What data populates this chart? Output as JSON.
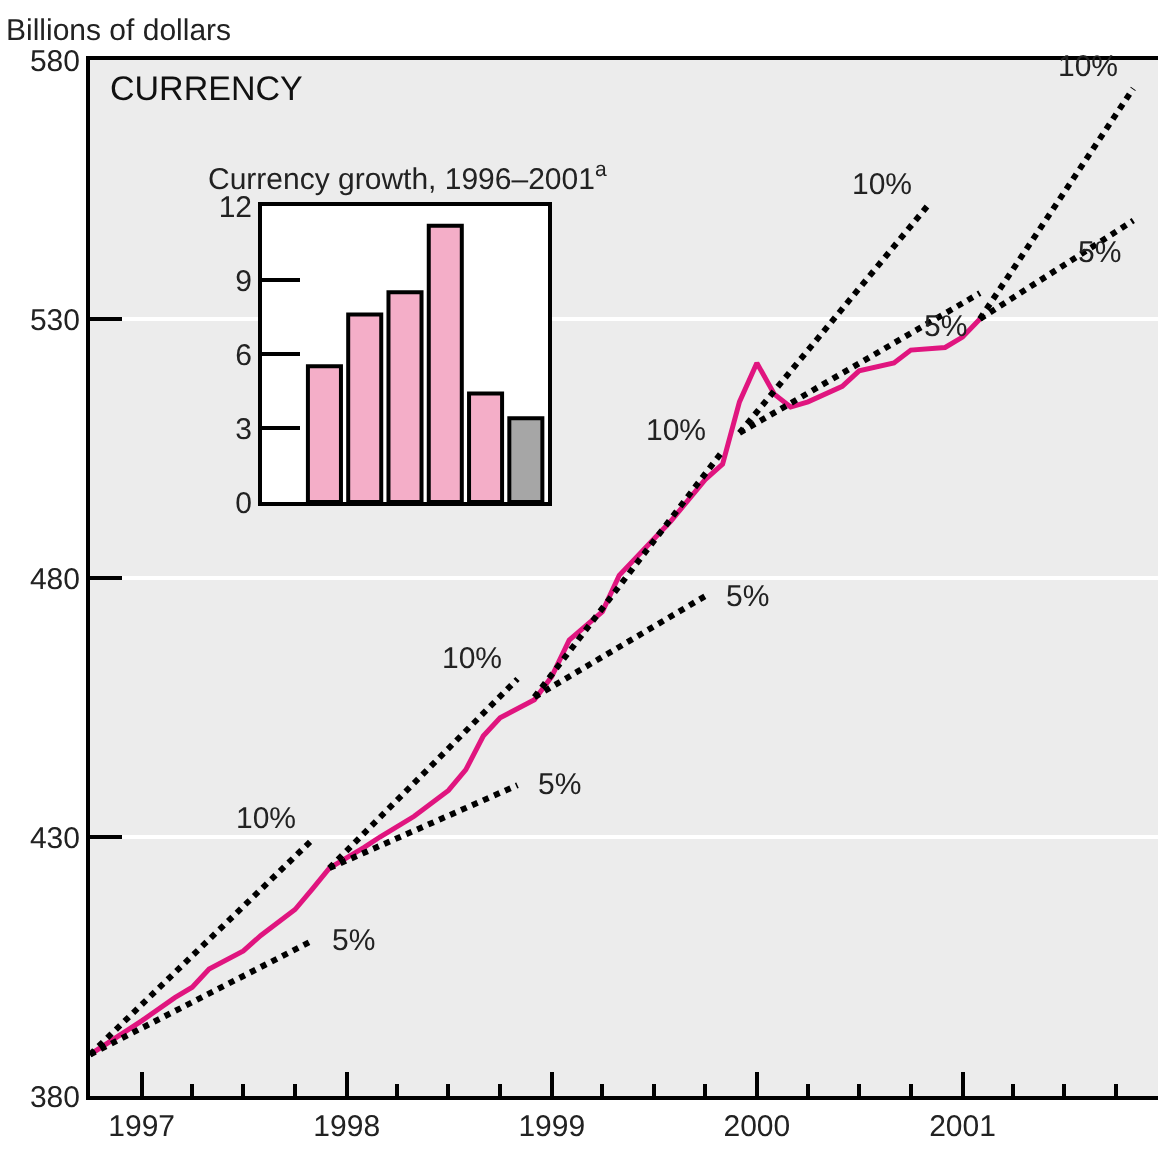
{
  "chart_data": [
    {
      "type": "line",
      "title": "CURRENCY",
      "ylabel": "Billions of dollars",
      "xlim": [
        "1996-10-01",
        "2001-12-15"
      ],
      "xticks": [
        {
          "value": "1997",
          "label": "1997"
        },
        {
          "value": "1998",
          "label": "1998"
        },
        {
          "value": "1999",
          "label": "1999"
        },
        {
          "value": "2000",
          "label": "2000"
        },
        {
          "value": "2001",
          "label": "2001"
        }
      ],
      "ylim": [
        380,
        580
      ],
      "yticks": [
        380,
        430,
        480,
        530,
        580
      ],
      "grid": "y",
      "legend": false,
      "marker": "none",
      "series": [
        {
          "color": "#e0157f",
          "line_style": "solid",
          "x": [
            "1996-10",
            "1997-01",
            "1997-03",
            "1997-04",
            "1997-05",
            "1997-07",
            "1997-08",
            "1997-10",
            "1997-11",
            "1997-12",
            "1998-02",
            "1998-03",
            "1998-05",
            "1998-07",
            "1998-08",
            "1998-09",
            "1998-10",
            "1998-12",
            "1999-01",
            "1999-02",
            "1999-04",
            "1999-05",
            "1999-08",
            "1999-10",
            "1999-11",
            "1999-12",
            "2000-01",
            "2000-02",
            "2000-03",
            "2000-04",
            "2000-06",
            "2000-07",
            "2000-09",
            "2000-10",
            "2000-12",
            "2001-01",
            "2001-02"
          ],
          "values": [
            388,
            394.5,
            399,
            401,
            404.5,
            408,
            411,
            416,
            420,
            424,
            428,
            430,
            434,
            439,
            443,
            449.5,
            453,
            456.5,
            461,
            468,
            473.5,
            480.5,
            491,
            499,
            502,
            514,
            521.5,
            515.5,
            513,
            514,
            517,
            520,
            521.5,
            524,
            524.5,
            526.5,
            530
          ]
        },
        {
          "name": "10%",
          "color": "#000000",
          "line_style": "dotted",
          "x": [
            "1996-10",
            "1997-11"
          ],
          "values": [
            388,
            429.5
          ]
        },
        {
          "name": "5%",
          "color": "#000000",
          "line_style": "dotted",
          "x": [
            "1996-10",
            "1997-11"
          ],
          "values": [
            388,
            410
          ]
        },
        {
          "name": "10%",
          "color": "#000000",
          "line_style": "dotted",
          "x": [
            "1997-12",
            "1998-11"
          ],
          "values": [
            424,
            460.5
          ]
        },
        {
          "name": "5%",
          "color": "#000000",
          "line_style": "dotted",
          "x": [
            "1997-12",
            "1998-11"
          ],
          "values": [
            424,
            440
          ]
        },
        {
          "name": "10%",
          "color": "#000000",
          "line_style": "dotted",
          "x": [
            "1998-12",
            "1999-11"
          ],
          "values": [
            457,
            504.5
          ]
        },
        {
          "name": "5%",
          "color": "#000000",
          "line_style": "dotted",
          "x": [
            "1998-12",
            "1999-10"
          ],
          "values": [
            457,
            476.5
          ]
        },
        {
          "name": "10%",
          "color": "#000000",
          "line_style": "dotted",
          "x": [
            "1999-12",
            "2000-11"
          ],
          "values": [
            508,
            552
          ]
        },
        {
          "name": "5%",
          "color": "#000000",
          "line_style": "dotted",
          "x": [
            "1999-12",
            "2001-02"
          ],
          "values": [
            508,
            535
          ]
        },
        {
          "name": "10%",
          "color": "#000000",
          "line_style": "dotted",
          "x": [
            "2001-02",
            "2001-11"
          ],
          "values": [
            530,
            574.5
          ]
        },
        {
          "name": "5%",
          "color": "#000000",
          "line_style": "dotted",
          "x": [
            "2001-02",
            "2001-11"
          ],
          "values": [
            530,
            549
          ]
        }
      ]
    },
    {
      "type": "bar",
      "title": "Currency growth, 1996–2001$^{a}$",
      "categories": [
        null,
        null,
        null,
        null,
        null,
        null
      ],
      "values": [
        5.5,
        7.6,
        8.5,
        11.2,
        4.4,
        3.4
      ],
      "colors": [
        "#f4aec8",
        "#f4aec8",
        "#f4aec8",
        "#f4aec8",
        "#f4aec8",
        "#a6a6a6"
      ],
      "ylim": [
        0,
        12
      ],
      "yticks": [
        0,
        3,
        6,
        9,
        12
      ],
      "tick_labels": "y",
      "grid": false
    }
  ]
}
